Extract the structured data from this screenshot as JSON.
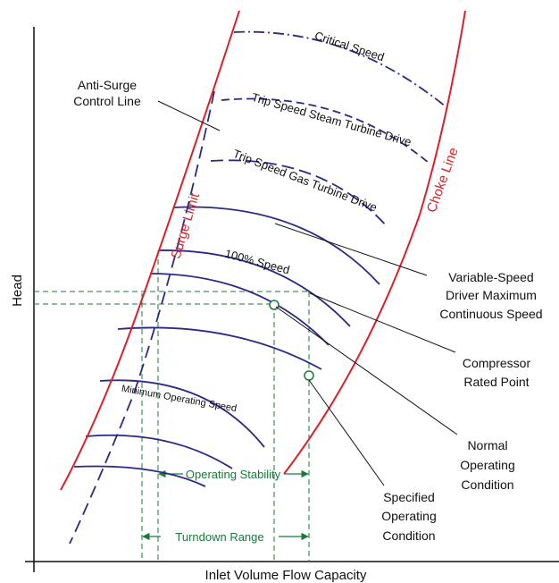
{
  "axes": {
    "x_label": "Inlet Volume Flow Capacity",
    "y_label": "Head"
  },
  "boundaries": {
    "surge_limit": "Surge Limit",
    "choke_line": "Choke Line",
    "anti_surge_line1": "Anti-Surge",
    "anti_surge_line2": "Control Line"
  },
  "speed_curves": {
    "critical": "Critical Speed",
    "trip_steam": "Trip Speed Steam Turbine Drive",
    "trip_gas": "Trip Speed Gas Turbine Drive",
    "hundred": "100% Speed",
    "minimum": "Minimum Operating Speed"
  },
  "callouts": {
    "max_cont_line1": "Variable-Speed",
    "max_cont_line2": "Driver Maximum",
    "max_cont_line3": "Continuous Speed",
    "rated_line1": "Compressor",
    "rated_line2": "Rated Point",
    "normal_line1": "Normal",
    "normal_line2": "Operating",
    "normal_line3": "Condition",
    "specified_line1": "Specified",
    "specified_line2": "Operating",
    "specified_line3": "Condition"
  },
  "ranges": {
    "operating_stability": "Operating Stability",
    "turndown": "Turndown Range"
  },
  "colors": {
    "red": "#e01e26",
    "navy": "#2a2a86",
    "green": "#1a7a3a",
    "black": "#111111"
  }
}
